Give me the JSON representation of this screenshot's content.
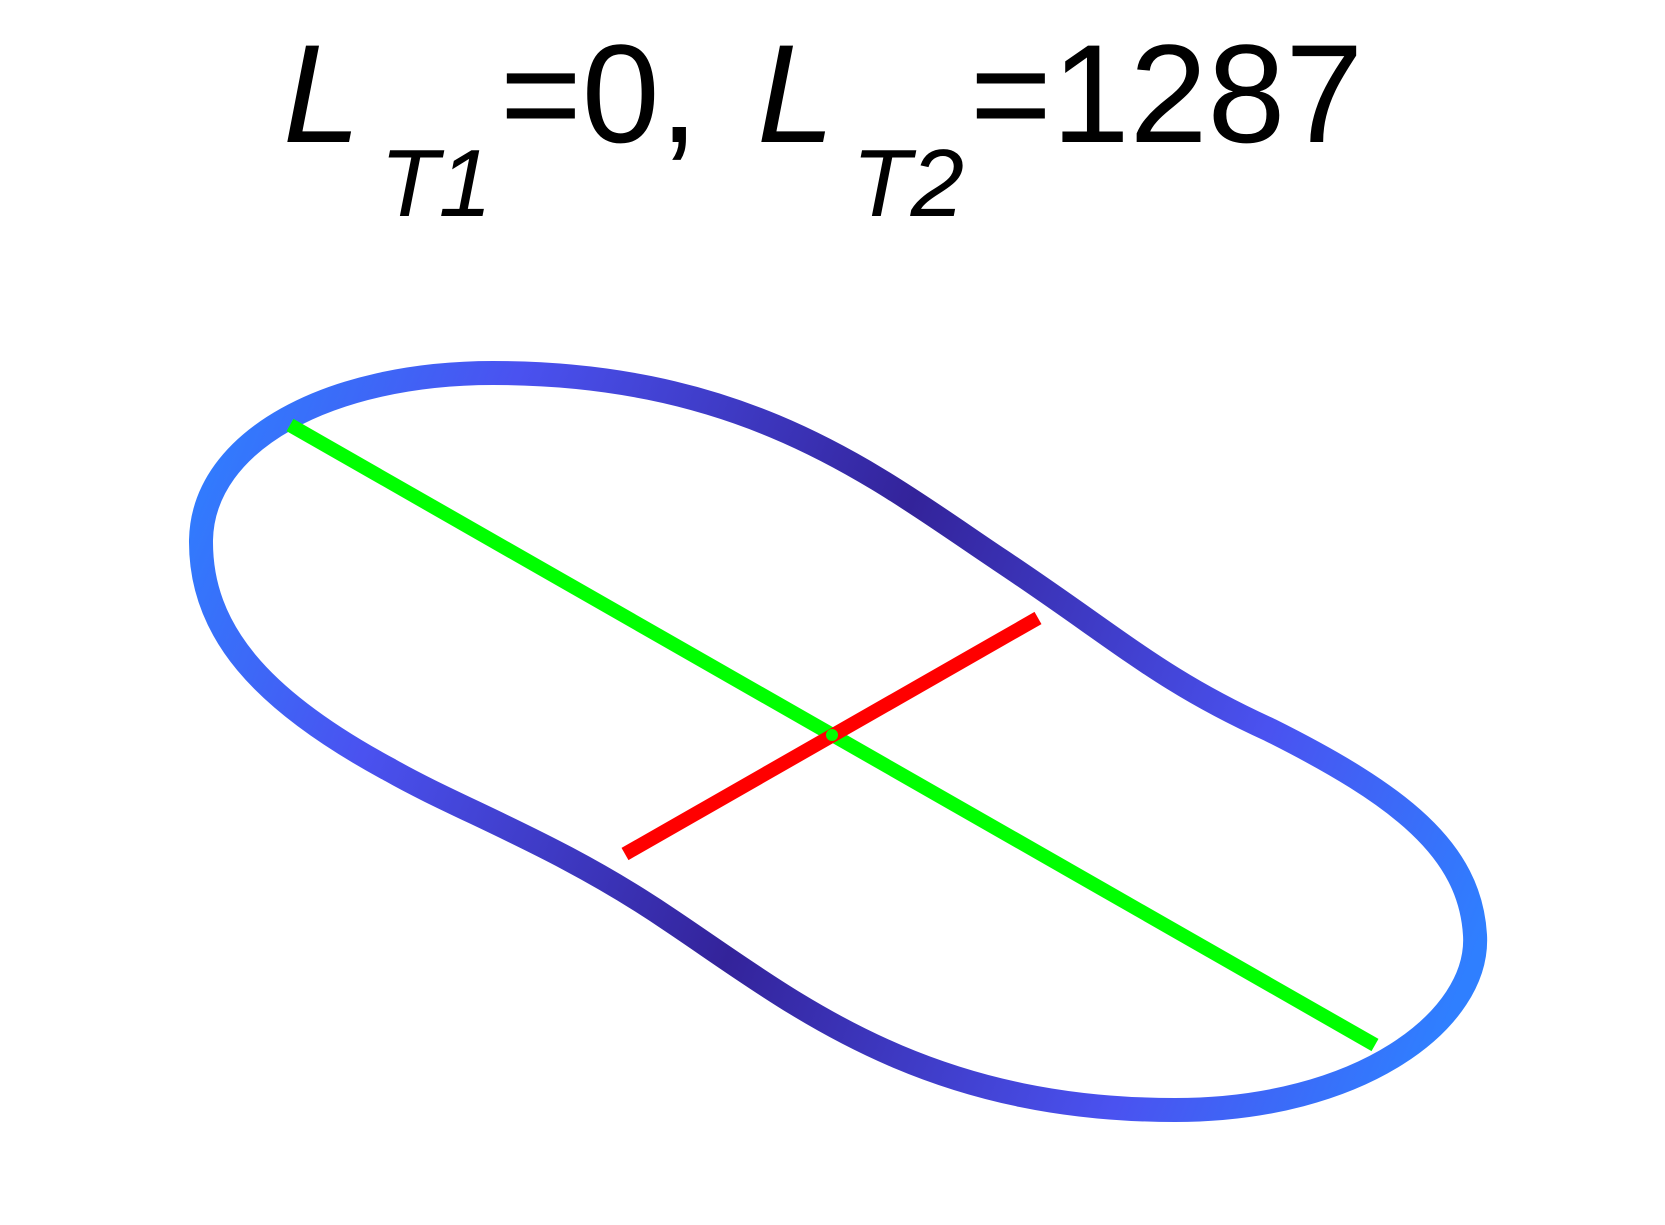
{
  "title": {
    "label1_symbol": "L",
    "label1_subscript": "T1",
    "label1_value": "=0,",
    "label2_symbol": "L",
    "label2_subscript": "T2",
    "label2_value": "=1287"
  },
  "colors": {
    "outline_light": "#2f7fff",
    "outline_mid": "#4a52f0",
    "outline_dark": "#33239a",
    "long_axis": "#00ff00",
    "short_axis": "#ff0000",
    "text": "#000000",
    "background": "#ffffff"
  },
  "shape": {
    "type": "s-shaped-closed-curve",
    "long_axis_name": "long-axis",
    "short_axis_name": "short-axis"
  }
}
